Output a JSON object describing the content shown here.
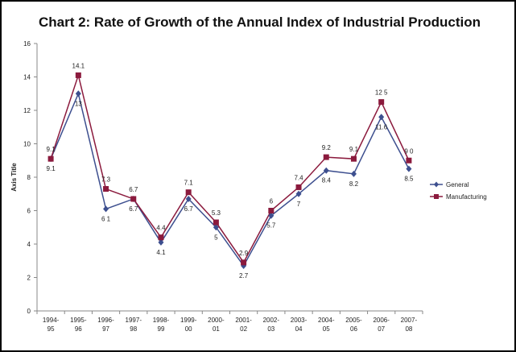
{
  "chart_data": {
    "type": "line",
    "title": "Chart 2: Rate of Growth of the Annual Index of Industrial Production",
    "xlabel": "",
    "ylabel": "Axis Title",
    "ylim": [
      0,
      16
    ],
    "yticks": [
      0,
      2,
      4,
      6,
      8,
      10,
      12,
      14,
      16
    ],
    "grid": false,
    "legend_position": "right",
    "categories": [
      [
        "1994-",
        "95"
      ],
      [
        "1995-",
        "96"
      ],
      [
        "1996-",
        "97"
      ],
      [
        "1997-",
        "98"
      ],
      [
        "1998-",
        "99"
      ],
      [
        "1999-",
        "00"
      ],
      [
        "2000-",
        "01"
      ],
      [
        "2001-",
        "02"
      ],
      [
        "2002-",
        "03"
      ],
      [
        "2003-",
        "04"
      ],
      [
        "2004-",
        "05"
      ],
      [
        "2005-",
        "06"
      ],
      [
        "2006-",
        "07"
      ],
      [
        "2007-",
        "08"
      ]
    ],
    "series": [
      {
        "name": "General",
        "color": "#3d4f8f",
        "marker": "diamond",
        "values": [
          9.1,
          13,
          6.1,
          6.7,
          4.1,
          6.7,
          5,
          2.7,
          5.7,
          7,
          8.4,
          8.2,
          11.6,
          8.5
        ],
        "labels": [
          "9.1",
          "13",
          "6 1",
          "6.7",
          "4.1",
          "6.7",
          "5",
          "2.7",
          "5.7",
          "7",
          "8.4",
          "8.2",
          "11.6",
          "8.5"
        ],
        "label_position": [
          "below",
          "below",
          "below",
          "below",
          "below",
          "below",
          "below",
          "below",
          "below",
          "below",
          "below",
          "below",
          "below",
          "below"
        ]
      },
      {
        "name": "Manufacturing",
        "color": "#8b1a3d",
        "marker": "square",
        "values": [
          9.1,
          14.1,
          7.3,
          6.7,
          4.4,
          7.1,
          5.3,
          2.9,
          6,
          7.4,
          9.2,
          9.1,
          12.5,
          9
        ],
        "labels": [
          "9.1",
          "14.1",
          "7.3",
          "6.7",
          "4.4",
          "7.1",
          "5.3",
          "2.9",
          "6",
          "7.4",
          "9.2",
          "9.1",
          "12 5",
          "9 0"
        ],
        "label_position": [
          "above",
          "above",
          "above",
          "above",
          "above",
          "above",
          "above",
          "above",
          "above",
          "above",
          "above",
          "above",
          "above",
          "above"
        ]
      }
    ]
  }
}
